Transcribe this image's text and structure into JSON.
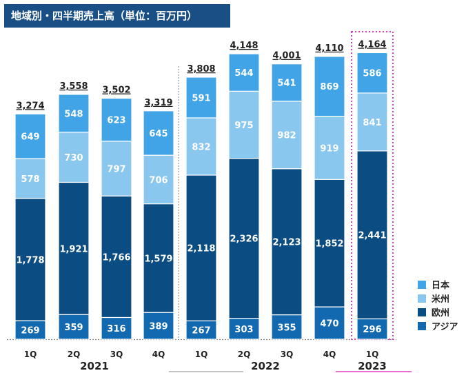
{
  "title": "地域別・四半期売上高（単位：百万円）",
  "chart_data": {
    "type": "bar",
    "stacked": true,
    "categories": [
      "1Q",
      "2Q",
      "3Q",
      "4Q",
      "1Q",
      "2Q",
      "3Q",
      "4Q",
      "1Q"
    ],
    "years": [
      {
        "label": "2021",
        "from": 0,
        "to": 3
      },
      {
        "label": "2022",
        "from": 4,
        "to": 7
      },
      {
        "label": "2023",
        "from": 8,
        "to": 8
      }
    ],
    "series": [
      {
        "name": "アジア",
        "color": "#1269b0",
        "values": [
          269,
          359,
          316,
          389,
          267,
          303,
          355,
          470,
          296
        ]
      },
      {
        "name": "欧州",
        "color": "#0b4c82",
        "values": [
          1778,
          1921,
          1766,
          1579,
          2118,
          2326,
          2123,
          1852,
          2441
        ]
      },
      {
        "name": "米州",
        "color": "#89c7ef",
        "values": [
          578,
          730,
          797,
          706,
          832,
          975,
          982,
          919,
          841
        ]
      },
      {
        "name": "日本",
        "color": "#41a4e6",
        "values": [
          649,
          548,
          623,
          645,
          591,
          544,
          541,
          869,
          586
        ]
      }
    ],
    "totals": [
      "3,274",
      "3,558",
      "3,502",
      "3,319",
      "3,808",
      "4,148",
      "4,001",
      "4,110",
      "4,164"
    ],
    "legend_order": [
      "日本",
      "米州",
      "欧州",
      "アジア"
    ],
    "legend_position": "bottom-right",
    "highlight_index": 8,
    "highlight_color": "#e040c0"
  }
}
